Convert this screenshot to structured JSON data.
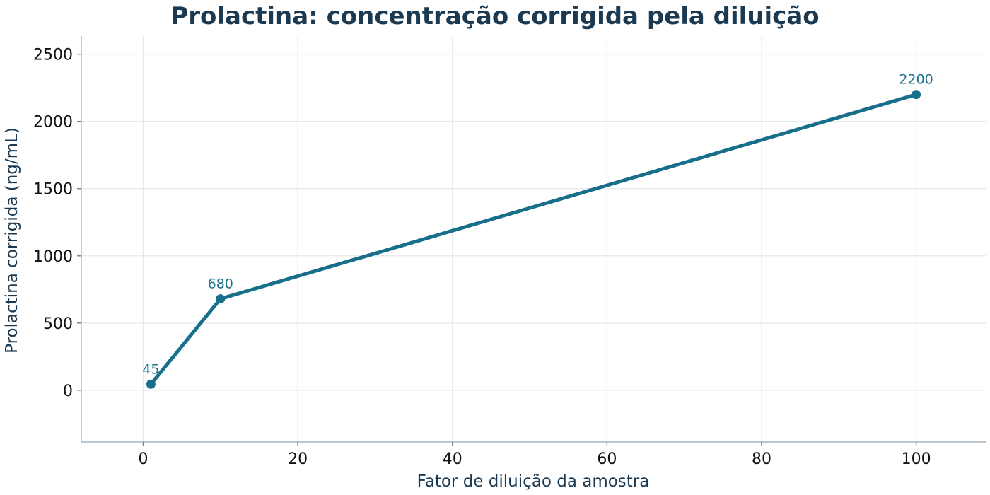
{
  "chart_data": {
    "type": "line",
    "title": "Prolactina: concentração corrigida pela diluição",
    "xlabel": "Fator de diluição da amostra",
    "ylabel": "Prolactina corrigida (ng/mL)",
    "xlim": [
      -8,
      109
    ],
    "ylim": [
      -385,
      2635
    ],
    "x_ticks": [
      0,
      20,
      40,
      60,
      80,
      100
    ],
    "y_ticks": [
      0,
      500,
      1000,
      1500,
      2000,
      2500
    ],
    "grid": true,
    "legend": "none",
    "series": [
      {
        "color": "#186f8a",
        "points": [
          {
            "x": 1,
            "y": 45
          },
          {
            "x": 10,
            "y": 680
          },
          {
            "x": 100,
            "y": 2200
          }
        ],
        "data_labels": [
          "45",
          "680",
          "2200"
        ]
      }
    ]
  }
}
